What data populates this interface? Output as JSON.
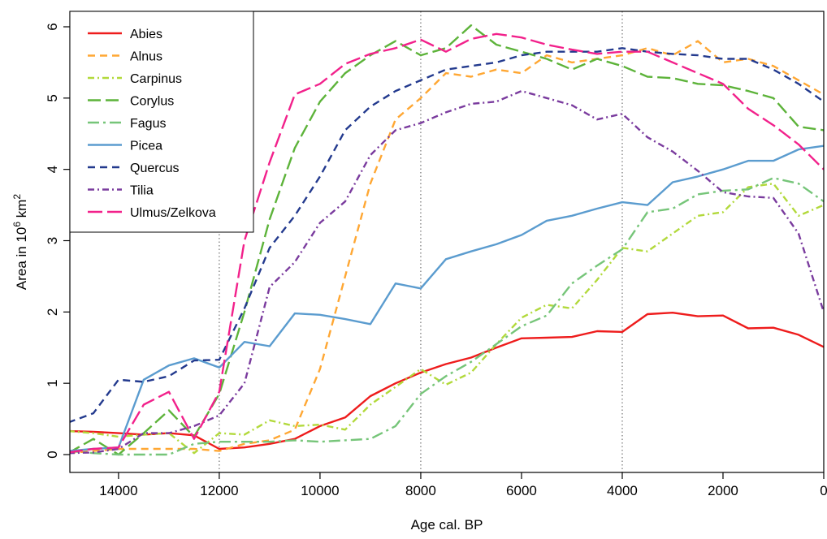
{
  "chart_data": {
    "type": "line",
    "xlabel": "Age cal. BP",
    "ylabel_prefix": "Area in 10",
    "ylabel_exp": "6",
    "ylabel_unit": " km",
    "ylabel_unit_exp": "2",
    "xlim": [
      15000,
      0
    ],
    "ylim": [
      0,
      6
    ],
    "xticks": [
      14000,
      12000,
      10000,
      8000,
      6000,
      4000,
      2000,
      0
    ],
    "yticks": [
      0,
      1,
      2,
      3,
      4,
      5,
      6
    ],
    "vlines": [
      12000,
      8000,
      4000
    ],
    "grid": false,
    "legend": "top-left",
    "x": [
      15000,
      14500,
      14000,
      13500,
      13000,
      12500,
      12000,
      11500,
      11000,
      10500,
      10000,
      9500,
      9000,
      8500,
      8000,
      7500,
      7000,
      6500,
      6000,
      5500,
      5000,
      4500,
      4000,
      3500,
      3000,
      2500,
      2000,
      1500,
      1000,
      500,
      0
    ],
    "series": [
      {
        "name": "Abies",
        "color": "#ee1c1c",
        "dash": "",
        "values": [
          0.33,
          0.32,
          0.3,
          0.28,
          0.3,
          0.27,
          0.08,
          0.1,
          0.15,
          0.22,
          0.4,
          0.52,
          0.82,
          1.0,
          1.15,
          1.27,
          1.36,
          1.5,
          1.63,
          1.64,
          1.65,
          1.73,
          1.72,
          1.97,
          1.99,
          1.94,
          1.95,
          1.77,
          1.78,
          1.68,
          1.51
        ]
      },
      {
        "name": "Alnus",
        "color": "#ffa733",
        "dash": "9 6",
        "values": [
          0.02,
          0.05,
          0.08,
          0.08,
          0.08,
          0.08,
          0.05,
          0.15,
          0.2,
          0.35,
          1.2,
          2.5,
          3.8,
          4.7,
          5.0,
          5.35,
          5.3,
          5.4,
          5.35,
          5.6,
          5.5,
          5.55,
          5.6,
          5.7,
          5.6,
          5.8,
          5.5,
          5.55,
          5.45,
          5.25,
          5.05
        ]
      },
      {
        "name": "Carpinus",
        "color": "#b2d93b",
        "dash": "8 4 2 4",
        "values": [
          0.33,
          0.3,
          0.25,
          0.28,
          0.3,
          0.02,
          0.3,
          0.28,
          0.48,
          0.4,
          0.42,
          0.35,
          0.7,
          0.95,
          1.2,
          0.98,
          1.15,
          1.55,
          1.92,
          2.1,
          2.05,
          2.45,
          2.9,
          2.85,
          3.1,
          3.35,
          3.4,
          3.75,
          3.8,
          3.35,
          3.5
        ]
      },
      {
        "name": "Corylus",
        "color": "#5db33a",
        "dash": "16 6",
        "values": [
          0.02,
          0.22,
          0.0,
          0.3,
          0.62,
          0.25,
          0.85,
          2.0,
          3.3,
          4.3,
          4.95,
          5.35,
          5.6,
          5.8,
          5.6,
          5.7,
          6.02,
          5.75,
          5.65,
          5.55,
          5.4,
          5.55,
          5.45,
          5.3,
          5.28,
          5.2,
          5.18,
          5.1,
          5.0,
          4.6,
          4.55
        ]
      },
      {
        "name": "Fagus",
        "color": "#76c579",
        "dash": "14 5 3 5",
        "values": [
          0.05,
          0.02,
          0.0,
          0.0,
          0.0,
          0.15,
          0.18,
          0.18,
          0.18,
          0.2,
          0.18,
          0.2,
          0.22,
          0.4,
          0.85,
          1.1,
          1.3,
          1.55,
          1.8,
          1.95,
          2.4,
          2.65,
          2.88,
          3.4,
          3.45,
          3.65,
          3.7,
          3.72,
          3.88,
          3.8,
          3.55
        ]
      },
      {
        "name": "Picea",
        "color": "#5b9ccf",
        "dash": "",
        "values": [
          0.05,
          0.08,
          0.1,
          1.05,
          1.25,
          1.35,
          1.22,
          1.58,
          1.52,
          1.98,
          1.96,
          1.9,
          1.83,
          2.4,
          2.33,
          2.74,
          2.85,
          2.95,
          3.08,
          3.28,
          3.35,
          3.45,
          3.54,
          3.5,
          3.82,
          3.9,
          4.0,
          4.12,
          4.12,
          4.28,
          4.33
        ]
      },
      {
        "name": "Quercus",
        "color": "#233a8e",
        "dash": "9 6",
        "values": [
          0.45,
          0.58,
          1.05,
          1.02,
          1.1,
          1.32,
          1.33,
          2.05,
          2.9,
          3.35,
          3.9,
          4.55,
          4.88,
          5.1,
          5.25,
          5.4,
          5.45,
          5.5,
          5.6,
          5.65,
          5.65,
          5.65,
          5.7,
          5.65,
          5.62,
          5.6,
          5.55,
          5.55,
          5.4,
          5.2,
          4.95
        ]
      },
      {
        "name": "Tilia",
        "color": "#7a3b9e",
        "dash": "8 4 2 4",
        "values": [
          0.02,
          0.03,
          0.08,
          0.3,
          0.3,
          0.4,
          0.55,
          1.0,
          2.35,
          2.7,
          3.25,
          3.55,
          4.2,
          4.55,
          4.65,
          4.8,
          4.92,
          4.95,
          5.1,
          5.0,
          4.9,
          4.7,
          4.78,
          4.45,
          4.25,
          3.98,
          3.68,
          3.62,
          3.6,
          3.1,
          2.0
        ]
      },
      {
        "name": "Ulmus/Zelkova",
        "color": "#f2218b",
        "dash": "18 6",
        "values": [
          0.03,
          0.08,
          0.1,
          0.7,
          0.88,
          0.22,
          0.88,
          3.0,
          4.1,
          5.05,
          5.2,
          5.48,
          5.62,
          5.7,
          5.82,
          5.65,
          5.83,
          5.9,
          5.85,
          5.75,
          5.68,
          5.62,
          5.65,
          5.65,
          5.5,
          5.35,
          5.2,
          4.85,
          4.62,
          4.35,
          4.0
        ]
      }
    ]
  }
}
